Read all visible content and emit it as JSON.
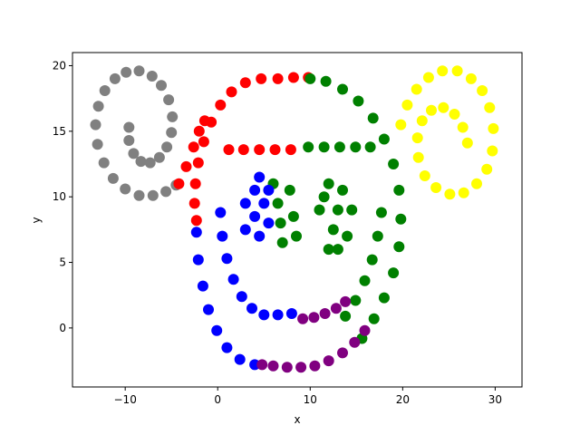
{
  "chart_data": {
    "type": "scatter",
    "title": "",
    "xlabel": "x",
    "ylabel": "y",
    "xlim": [
      -15.7,
      32.9
    ],
    "ylim": [
      -4.5,
      21.0
    ],
    "xticks": [
      -10,
      0,
      10,
      20,
      30
    ],
    "yticks": [
      0,
      5,
      10,
      15,
      20
    ],
    "x_tick_labels": [
      "−10",
      "0",
      "10",
      "20",
      "30"
    ],
    "y_tick_labels": [
      "0",
      "5",
      "10",
      "15",
      "20"
    ],
    "grid": false,
    "legend": "none",
    "colors": {
      "gray": "#808080",
      "red": "#ff0000",
      "green": "#008000",
      "blue": "#0000ff",
      "purple": "#800080",
      "yellow": "#ffff00"
    },
    "series": [
      {
        "color": "#808080",
        "points": [
          [
            -4.5,
            10.9
          ],
          [
            -5.6,
            10.4
          ],
          [
            -7.0,
            10.1
          ],
          [
            -8.5,
            10.1
          ],
          [
            -10.0,
            10.6
          ],
          [
            -11.3,
            11.4
          ],
          [
            -12.3,
            12.6
          ],
          [
            -13.0,
            14.0
          ],
          [
            -13.2,
            15.5
          ],
          [
            -12.9,
            16.9
          ],
          [
            -12.2,
            18.1
          ],
          [
            -11.1,
            19.0
          ],
          [
            -9.9,
            19.5
          ],
          [
            -8.5,
            19.6
          ],
          [
            -7.1,
            19.2
          ],
          [
            -6.1,
            18.5
          ],
          [
            -5.3,
            17.4
          ],
          [
            -4.9,
            16.1
          ],
          [
            -5.0,
            14.9
          ],
          [
            -5.5,
            13.8
          ],
          [
            -6.3,
            13.0
          ],
          [
            -7.3,
            12.6
          ],
          [
            -8.3,
            12.7
          ],
          [
            -9.1,
            13.3
          ],
          [
            -9.6,
            14.3
          ],
          [
            -9.6,
            15.3
          ]
        ]
      },
      {
        "color": "#ff0000",
        "points": [
          [
            -2.3,
            8.2
          ],
          [
            -2.5,
            9.5
          ],
          [
            -2.4,
            11.0
          ],
          [
            -2.1,
            12.6
          ],
          [
            -1.5,
            14.2
          ],
          [
            -0.7,
            15.7
          ],
          [
            0.3,
            17.0
          ],
          [
            1.5,
            18.0
          ],
          [
            3.0,
            18.7
          ],
          [
            4.7,
            19.0
          ],
          [
            6.5,
            19.0
          ],
          [
            8.2,
            19.1
          ],
          [
            9.8,
            19.1
          ],
          [
            -4.2,
            11.0
          ],
          [
            -3.4,
            12.3
          ],
          [
            -2.6,
            13.8
          ],
          [
            -2.0,
            15.0
          ],
          [
            -1.4,
            15.8
          ],
          [
            1.2,
            13.6
          ],
          [
            2.8,
            13.6
          ],
          [
            4.5,
            13.6
          ],
          [
            6.2,
            13.6
          ],
          [
            7.9,
            13.6
          ]
        ]
      },
      {
        "color": "#008000",
        "points": [
          [
            10.0,
            19.0
          ],
          [
            11.7,
            18.8
          ],
          [
            13.5,
            18.2
          ],
          [
            15.2,
            17.3
          ],
          [
            16.8,
            16.0
          ],
          [
            18.0,
            14.4
          ],
          [
            19.0,
            12.5
          ],
          [
            19.6,
            10.5
          ],
          [
            19.8,
            8.3
          ],
          [
            19.6,
            6.2
          ],
          [
            19.0,
            4.2
          ],
          [
            18.0,
            2.3
          ],
          [
            16.9,
            0.7
          ],
          [
            15.6,
            -0.8
          ],
          [
            17.7,
            8.8
          ],
          [
            17.3,
            7.0
          ],
          [
            16.7,
            5.2
          ],
          [
            15.9,
            3.6
          ],
          [
            14.9,
            2.1
          ],
          [
            13.8,
            0.9
          ],
          [
            9.8,
            13.8
          ],
          [
            11.5,
            13.8
          ],
          [
            13.2,
            13.8
          ],
          [
            14.9,
            13.8
          ],
          [
            16.5,
            13.8
          ],
          [
            6.0,
            11.0
          ],
          [
            6.5,
            9.5
          ],
          [
            6.8,
            8.0
          ],
          [
            7.0,
            6.5
          ],
          [
            7.8,
            10.5
          ],
          [
            8.2,
            8.5
          ],
          [
            8.5,
            7.0
          ],
          [
            11.0,
            9.0
          ],
          [
            12.0,
            11.0
          ],
          [
            12.5,
            7.5
          ],
          [
            13.0,
            9.0
          ],
          [
            13.5,
            10.5
          ],
          [
            14.0,
            7.0
          ],
          [
            14.5,
            9.0
          ],
          [
            12.0,
            6.0
          ],
          [
            11.5,
            10.0
          ],
          [
            13.0,
            6.0
          ]
        ]
      },
      {
        "color": "#0000ff",
        "points": [
          [
            -2.3,
            7.3
          ],
          [
            -2.1,
            5.2
          ],
          [
            -1.6,
            3.2
          ],
          [
            -1.0,
            1.4
          ],
          [
            -0.1,
            -0.2
          ],
          [
            1.0,
            -1.5
          ],
          [
            2.4,
            -2.4
          ],
          [
            4.0,
            -2.8
          ],
          [
            0.3,
            8.8
          ],
          [
            0.5,
            7.0
          ],
          [
            1.0,
            5.3
          ],
          [
            1.7,
            3.7
          ],
          [
            2.6,
            2.4
          ],
          [
            3.7,
            1.5
          ],
          [
            5.0,
            1.0
          ],
          [
            6.5,
            1.0
          ],
          [
            8.0,
            1.1
          ],
          [
            4.0,
            10.5
          ],
          [
            4.5,
            11.5
          ],
          [
            5.0,
            9.5
          ],
          [
            5.5,
            8.0
          ],
          [
            4.0,
            8.5
          ],
          [
            3.0,
            9.5
          ],
          [
            4.5,
            7.0
          ],
          [
            5.5,
            10.5
          ],
          [
            3.0,
            7.5
          ]
        ]
      },
      {
        "color": "#800080",
        "points": [
          [
            4.8,
            -2.8
          ],
          [
            6.0,
            -2.9
          ],
          [
            7.5,
            -3.0
          ],
          [
            9.0,
            -3.0
          ],
          [
            10.5,
            -2.9
          ],
          [
            12.0,
            -2.5
          ],
          [
            13.5,
            -1.9
          ],
          [
            14.8,
            -1.1
          ],
          [
            15.9,
            -0.2
          ],
          [
            9.2,
            0.7
          ],
          [
            10.4,
            0.8
          ],
          [
            11.6,
            1.1
          ],
          [
            12.8,
            1.5
          ],
          [
            13.8,
            2.0
          ]
        ]
      },
      {
        "color": "#ffff00",
        "points": [
          [
            19.8,
            15.5
          ],
          [
            20.5,
            17.0
          ],
          [
            21.5,
            18.2
          ],
          [
            22.8,
            19.1
          ],
          [
            24.3,
            19.6
          ],
          [
            25.9,
            19.6
          ],
          [
            27.4,
            19.0
          ],
          [
            28.6,
            18.1
          ],
          [
            29.4,
            16.8
          ],
          [
            29.8,
            15.2
          ],
          [
            29.7,
            13.5
          ],
          [
            29.1,
            12.1
          ],
          [
            28.0,
            11.0
          ],
          [
            26.6,
            10.3
          ],
          [
            25.1,
            10.2
          ],
          [
            23.6,
            10.7
          ],
          [
            22.4,
            11.6
          ],
          [
            21.7,
            13.0
          ],
          [
            21.6,
            14.5
          ],
          [
            22.1,
            15.8
          ],
          [
            23.1,
            16.6
          ],
          [
            24.4,
            16.8
          ],
          [
            25.6,
            16.3
          ],
          [
            26.5,
            15.3
          ],
          [
            27.0,
            14.1
          ]
        ]
      }
    ]
  }
}
